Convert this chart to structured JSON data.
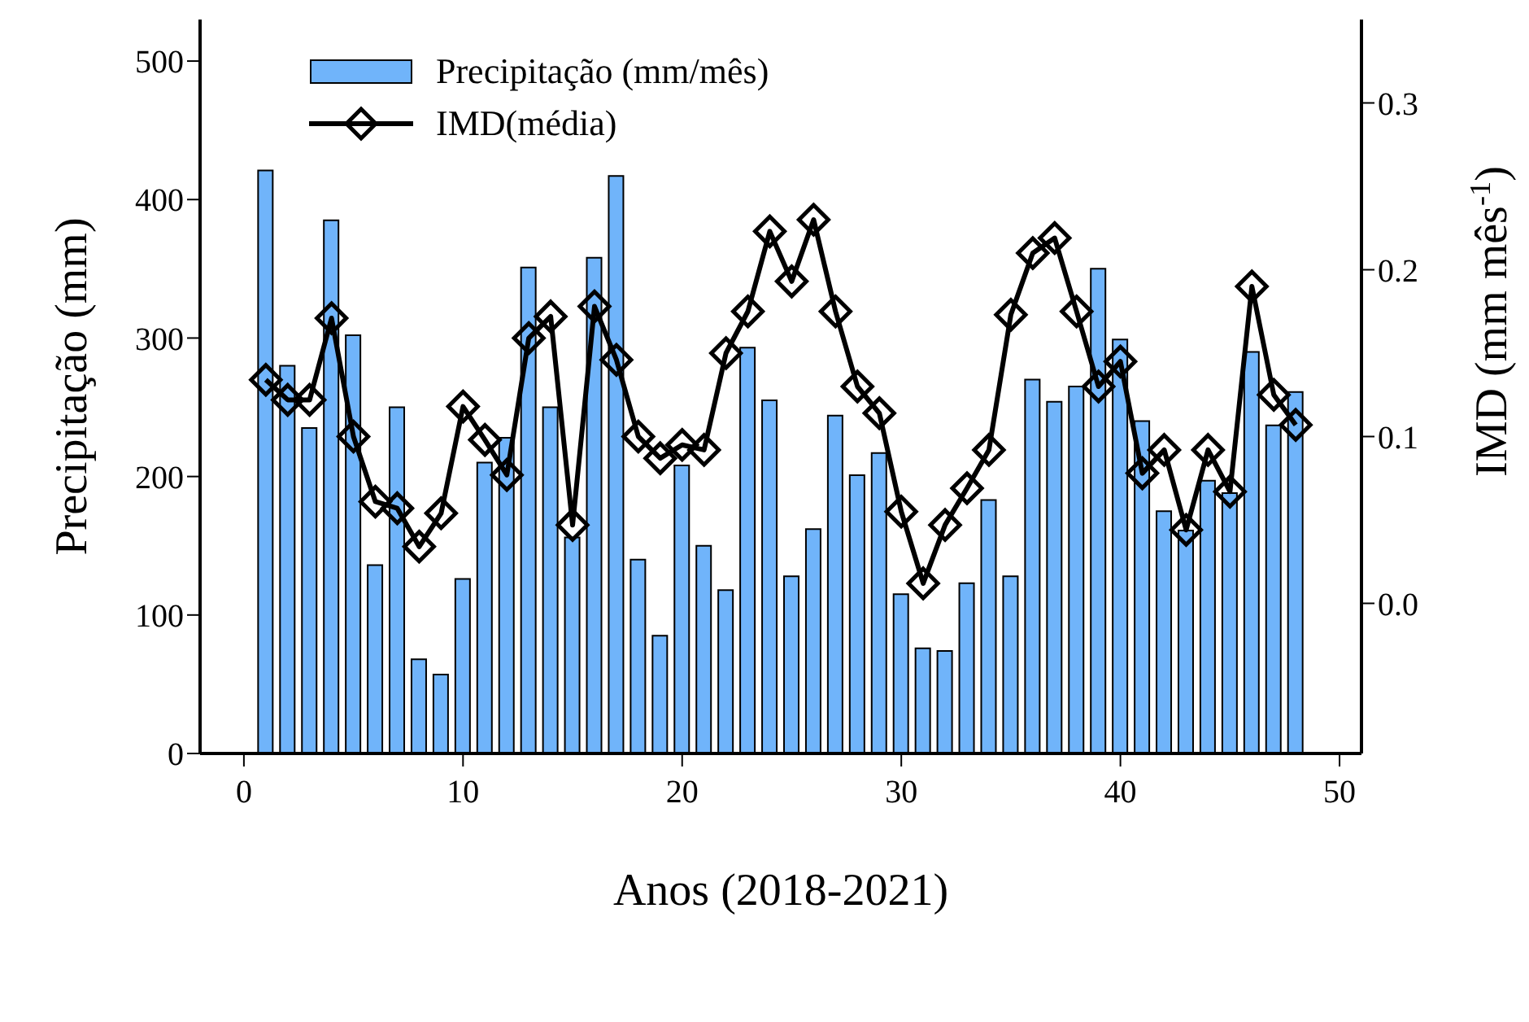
{
  "chart_data": {
    "type": "bar",
    "xlabel": "Anos (2018-2021)",
    "ylabel": "Precipitação (mm)",
    "y2label": "IMD (mm mês$^{-1}$)",
    "x": [
      1,
      2,
      3,
      4,
      5,
      6,
      7,
      8,
      9,
      10,
      11,
      12,
      13,
      14,
      15,
      16,
      17,
      18,
      19,
      20,
      21,
      22,
      23,
      24,
      25,
      26,
      27,
      28,
      29,
      30,
      31,
      32,
      33,
      34,
      35,
      36,
      37,
      38,
      39,
      40,
      41,
      42,
      43,
      44,
      45,
      46,
      47,
      48
    ],
    "series": [
      {
        "name": "Precipitação (mm/mês)",
        "color": "#70b4fa",
        "values": [
          421,
          280,
          235,
          385,
          302,
          136,
          250,
          68,
          57,
          126,
          210,
          228,
          351,
          250,
          156,
          358,
          417,
          140,
          85,
          208,
          150,
          118,
          293,
          255,
          128,
          162,
          244,
          201,
          217,
          115,
          76,
          74,
          123,
          183,
          128,
          270,
          254,
          265,
          350,
          299,
          240,
          175,
          161,
          197,
          188,
          290,
          237,
          261
        ]
      },
      {
        "name": "IMD(média)",
        "type": "line",
        "axis": "y2",
        "color": "#000000",
        "marker": "diamond",
        "values": [
          0.134,
          0.122,
          0.122,
          0.171,
          0.1,
          0.061,
          0.057,
          0.034,
          0.054,
          0.118,
          0.098,
          0.077,
          0.159,
          0.172,
          0.047,
          0.178,
          0.146,
          0.1,
          0.087,
          0.095,
          0.092,
          0.15,
          0.175,
          0.223,
          0.193,
          0.23,
          0.175,
          0.13,
          0.114,
          0.055,
          0.012,
          0.047,
          0.069,
          0.092,
          0.173,
          0.21,
          0.219,
          0.175,
          0.13,
          0.145,
          0.078,
          0.092,
          0.044,
          0.092,
          0.067,
          0.19,
          0.125,
          0.107
        ]
      }
    ],
    "xlim": [
      -2,
      51
    ],
    "xticks": [
      0,
      10,
      20,
      30,
      40,
      50
    ],
    "ylim": [
      0,
      530
    ],
    "yticks": [
      0,
      100,
      200,
      300,
      400,
      500
    ],
    "y2lim": [
      -0.09,
      0.35
    ],
    "y2ticks": [
      {
        "value": 0,
        "label": "0.0"
      },
      {
        "value": 0.1,
        "label": "0.1"
      },
      {
        "value": 0.2,
        "label": "0.2"
      },
      {
        "value": 0.3,
        "label": "0.3"
      }
    ],
    "grid": false,
    "legend": "top left"
  }
}
